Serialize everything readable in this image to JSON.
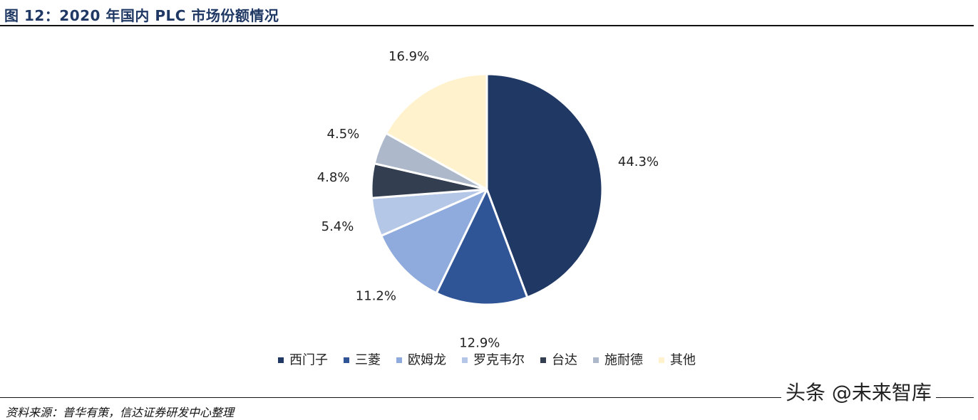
{
  "title": "图 12：2020 年国内 PLC 市场份额情况",
  "source": "资料来源：普华有策，信达证券研发中心整理",
  "watermark": "头条 @未来智库",
  "chart_data": {
    "type": "pie",
    "title": "",
    "legend_position": "bottom",
    "slices": [
      {
        "name": "西门子",
        "value": 44.3,
        "label": "44.3%",
        "color": "#203864"
      },
      {
        "name": "三菱",
        "value": 12.9,
        "label": "12.9%",
        "color": "#2f5597"
      },
      {
        "name": "欧姆龙",
        "value": 11.2,
        "label": "11.2%",
        "color": "#8faadc"
      },
      {
        "name": "罗克韦尔",
        "value": 5.4,
        "label": "5.4%",
        "color": "#b4c7e7"
      },
      {
        "name": "台达",
        "value": 4.8,
        "label": "4.8%",
        "color": "#333f50"
      },
      {
        "name": "施耐德",
        "value": 4.5,
        "label": "4.5%",
        "color": "#adb9ca"
      },
      {
        "name": "其他",
        "value": 16.9,
        "label": "16.9%",
        "color": "#fff2cc"
      }
    ]
  }
}
